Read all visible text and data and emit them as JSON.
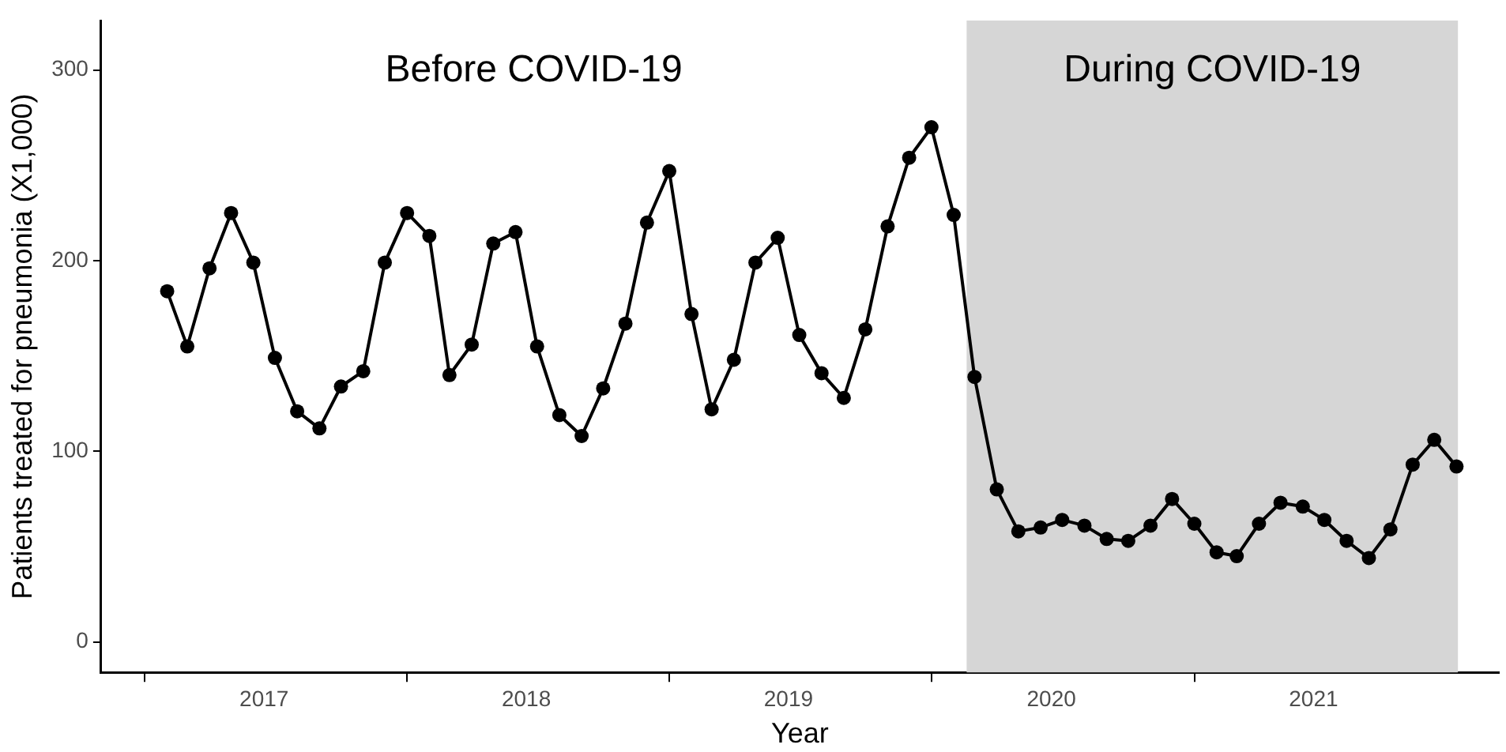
{
  "chart_data": {
    "type": "line",
    "xlabel": "Year",
    "ylabel": "Patients treated for pneumonia (X1,000)",
    "x": [
      "2017-02",
      "2017-03",
      "2017-04",
      "2017-05",
      "2017-06",
      "2017-07",
      "2017-08",
      "2017-09",
      "2017-10",
      "2017-11",
      "2017-12",
      "2018-01",
      "2018-02",
      "2018-03",
      "2018-04",
      "2018-05",
      "2018-06",
      "2018-07",
      "2018-08",
      "2018-09",
      "2018-10",
      "2018-11",
      "2018-12",
      "2019-01",
      "2019-02",
      "2019-03",
      "2019-04",
      "2019-05",
      "2019-06",
      "2019-07",
      "2019-08",
      "2019-09",
      "2019-10",
      "2019-11",
      "2019-12",
      "2020-01",
      "2020-02",
      "2020-03",
      "2020-04",
      "2020-05",
      "2020-06",
      "2020-07",
      "2020-08",
      "2020-09",
      "2020-10",
      "2020-11",
      "2020-12",
      "2021-01",
      "2021-02",
      "2021-03",
      "2021-04",
      "2021-05",
      "2021-06",
      "2021-07",
      "2021-08",
      "2021-09",
      "2021-10",
      "2021-11",
      "2021-12",
      "2022-01"
    ],
    "series": [
      {
        "color": "#000000",
        "values": [
          184,
          155,
          196,
          225,
          199,
          149,
          121,
          112,
          134,
          142,
          199,
          225,
          213,
          140,
          156,
          209,
          215,
          155,
          119,
          108,
          133,
          167,
          220,
          247,
          172,
          122,
          148,
          199,
          212,
          161,
          141,
          128,
          164,
          218,
          254,
          270,
          224,
          139,
          80,
          58,
          60,
          64,
          61,
          54,
          53,
          61,
          75,
          62,
          47,
          45,
          62,
          73,
          71,
          64,
          53,
          44,
          59,
          93,
          106,
          92
        ]
      }
    ],
    "xlim": [
      "2016-11-01",
      "2022-03-01"
    ],
    "xticks": [
      {
        "value": "2017-01-01",
        "label": null
      },
      {
        "value": "2017-06-16",
        "label": "2017"
      },
      {
        "value": "2018-01-01",
        "label": null
      },
      {
        "value": "2018-06-16",
        "label": "2018"
      },
      {
        "value": "2019-01-01",
        "label": null
      },
      {
        "value": "2019-06-16",
        "label": "2019"
      },
      {
        "value": "2020-01-01",
        "label": null
      },
      {
        "value": "2020-06-16",
        "label": "2020"
      },
      {
        "value": "2021-01-01",
        "label": null
      },
      {
        "value": "2021-06-16",
        "label": "2021"
      }
    ],
    "ylim": [
      -16,
      326
    ],
    "yticks": [
      0,
      100,
      200,
      300
    ],
    "bands": [
      {
        "axis": "x",
        "from": "2020-02-19",
        "to": "2022-01-03",
        "label": "During COVID-19",
        "color": "#d6d6d6"
      }
    ],
    "annotations": [
      "Before COVID-19"
    ],
    "grid": false,
    "legend": false,
    "marker": "circle",
    "line_style": "solid"
  }
}
